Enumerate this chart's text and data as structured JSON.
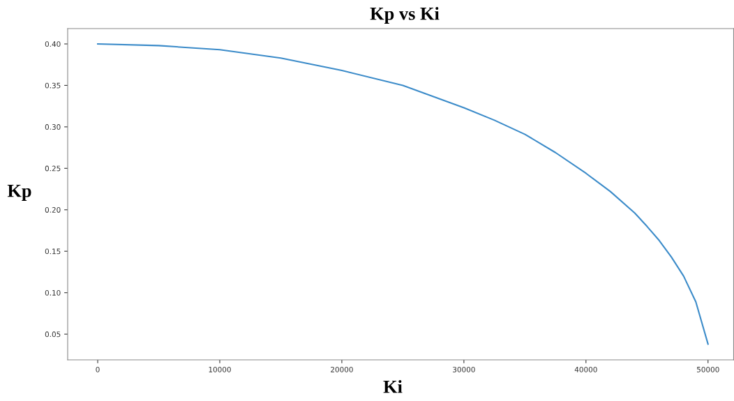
{
  "chart_data": {
    "type": "line",
    "title": "Kp vs Ki",
    "xlabel": "Ki",
    "ylabel": "Kp",
    "x": [
      0,
      5000,
      10000,
      15000,
      20000,
      25000,
      30000,
      32500,
      35000,
      37500,
      40000,
      42000,
      44000,
      45000,
      46000,
      47000,
      48000,
      49000,
      50000
    ],
    "series": [
      {
        "color": "#3b8bc9",
        "values": [
          0.4,
          0.398,
          0.393,
          0.383,
          0.368,
          0.35,
          0.323,
          0.308,
          0.291,
          0.269,
          0.244,
          0.222,
          0.196,
          0.18,
          0.163,
          0.143,
          0.12,
          0.089,
          0.038
        ]
      }
    ],
    "xlim": [
      -2460,
      52100
    ],
    "xticks": [
      0,
      10000,
      20000,
      30000,
      40000,
      50000
    ],
    "ylim": [
      0.019,
      0.4185
    ],
    "yticks": [
      {
        "value": 0.05,
        "label": "0.05"
      },
      {
        "value": 0.1,
        "label": "0.10"
      },
      {
        "value": 0.15,
        "label": "0.15"
      },
      {
        "value": 0.2,
        "label": "0.20"
      },
      {
        "value": 0.25,
        "label": "0.25"
      },
      {
        "value": 0.3,
        "label": "0.30"
      },
      {
        "value": 0.35,
        "label": "0.35"
      },
      {
        "value": 0.4,
        "label": "0.40"
      }
    ],
    "grid": false,
    "legend": false
  }
}
